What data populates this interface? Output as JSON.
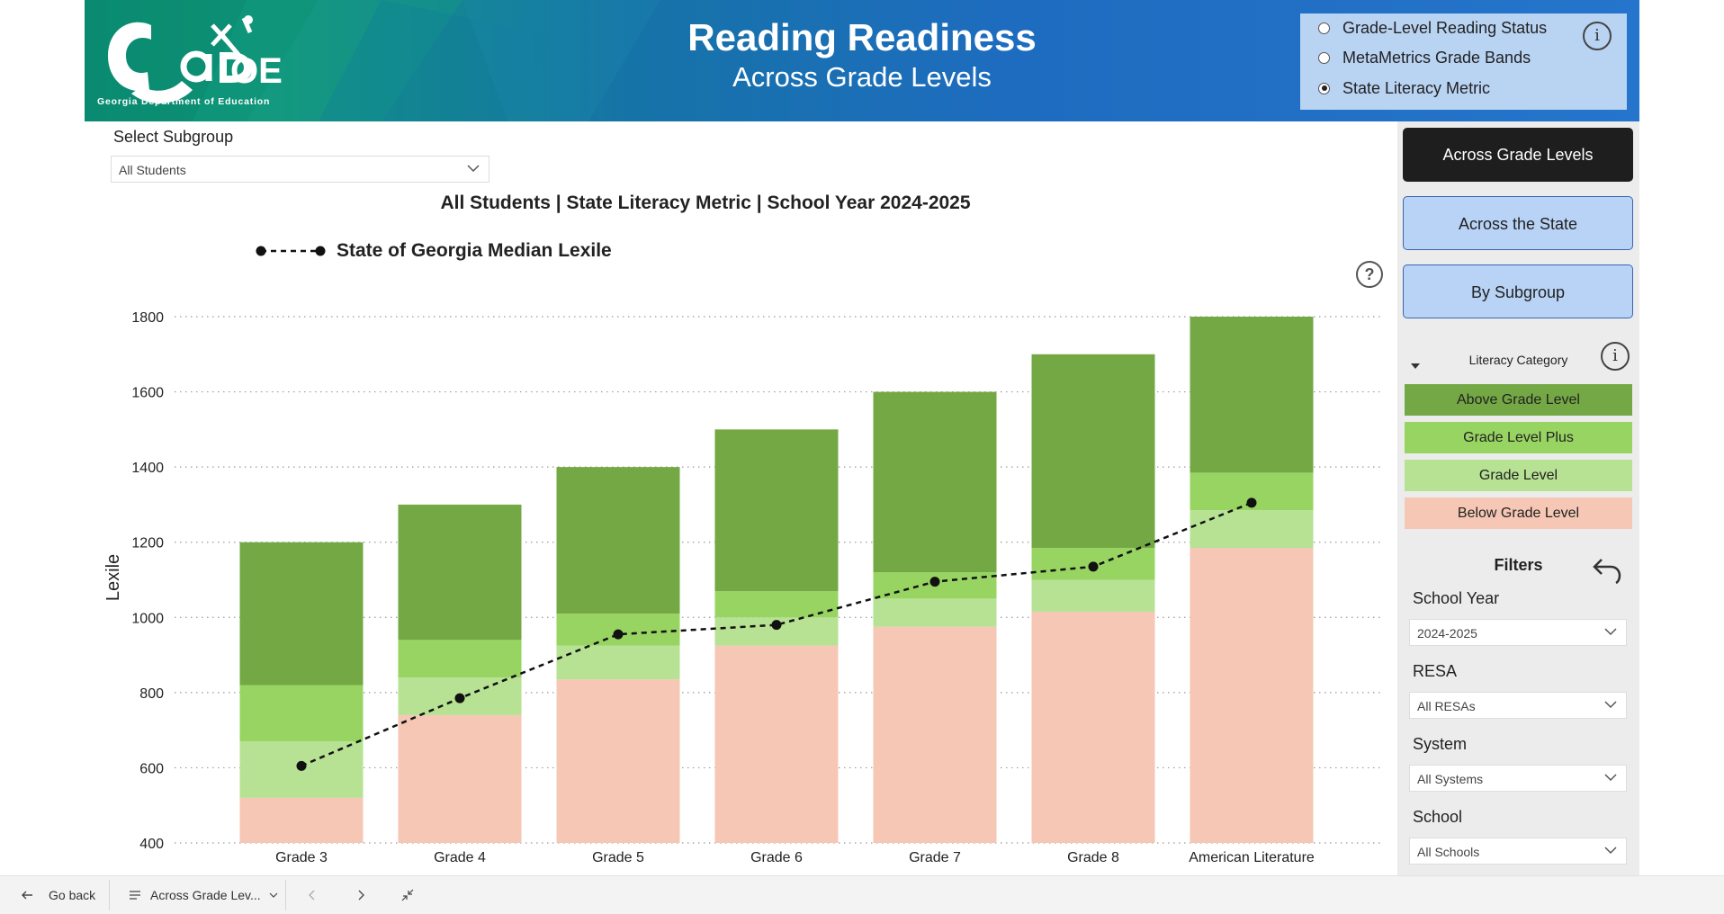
{
  "header": {
    "logo_text": "GaDOE",
    "logo_subtitle": "Georgia Department of Education",
    "title": "Reading Readiness",
    "subtitle": "Across Grade Levels"
  },
  "view_options": [
    {
      "label": "Grade-Level Reading Status",
      "selected": false
    },
    {
      "label": "MetaMetrics Grade Bands",
      "selected": false
    },
    {
      "label": "State Literacy Metric",
      "selected": true
    }
  ],
  "subgroup": {
    "label": "Select Subgroup",
    "value": "All Students"
  },
  "chart_title": "All Students | State Literacy Metric | School Year 2024-2025",
  "legend_label": "State of Georgia Median Lexile",
  "nav": {
    "across_grade_levels": "Across Grade Levels",
    "across_state": "Across the State",
    "by_subgroup": "By Subgroup"
  },
  "literacy_category": {
    "title": "Literacy Category",
    "items": [
      {
        "label": "Above Grade Level",
        "color": "#74a845"
      },
      {
        "label": "Grade Level Plus",
        "color": "#98d462"
      },
      {
        "label": "Grade Level",
        "color": "#b7e294"
      },
      {
        "label": "Below Grade Level",
        "color": "#f5c7b4"
      }
    ]
  },
  "filters": {
    "title": "Filters",
    "school_year": {
      "label": "School Year",
      "value": "2024-2025"
    },
    "resa": {
      "label": "RESA",
      "value": "All RESAs"
    },
    "system": {
      "label": "System",
      "value": "All Systems"
    },
    "school": {
      "label": "School",
      "value": "All Schools"
    }
  },
  "bottom_bar": {
    "go_back": "Go back",
    "page": "Across Grade Lev..."
  },
  "chart_data": {
    "type": "bar",
    "stacked": true,
    "ylabel": "Lexile",
    "ylim": [
      400,
      1800
    ],
    "yticks": [
      400,
      600,
      800,
      1000,
      1200,
      1400,
      1600,
      1800
    ],
    "grid": true,
    "categories": [
      "Grade 3",
      "Grade 4",
      "Grade 5",
      "Grade 6",
      "Grade 7",
      "Grade 8",
      "American Literature"
    ],
    "bands": [
      {
        "name": "Below Grade Level",
        "color": "#f5c7b4",
        "from": [
          400,
          400,
          400,
          400,
          400,
          400,
          400
        ],
        "to": [
          520,
          740,
          835,
          925,
          975,
          1015,
          1185
        ]
      },
      {
        "name": "Grade Level",
        "color": "#b7e294",
        "from": [
          520,
          740,
          835,
          925,
          975,
          1015,
          1185
        ],
        "to": [
          670,
          840,
          925,
          1000,
          1050,
          1100,
          1285
        ]
      },
      {
        "name": "Grade Level Plus",
        "color": "#98d462",
        "from": [
          670,
          840,
          925,
          1000,
          1050,
          1100,
          1285
        ],
        "to": [
          820,
          940,
          1010,
          1070,
          1120,
          1185,
          1385
        ]
      },
      {
        "name": "Above Grade Level",
        "color": "#74a845",
        "from": [
          820,
          940,
          1010,
          1070,
          1120,
          1185,
          1385
        ],
        "to": [
          1200,
          1300,
          1400,
          1500,
          1600,
          1700,
          1800
        ]
      }
    ],
    "median_line": {
      "name": "State of Georgia Median Lexile",
      "style": "dashed",
      "values": [
        605,
        785,
        955,
        980,
        1095,
        1135,
        1305
      ]
    }
  }
}
